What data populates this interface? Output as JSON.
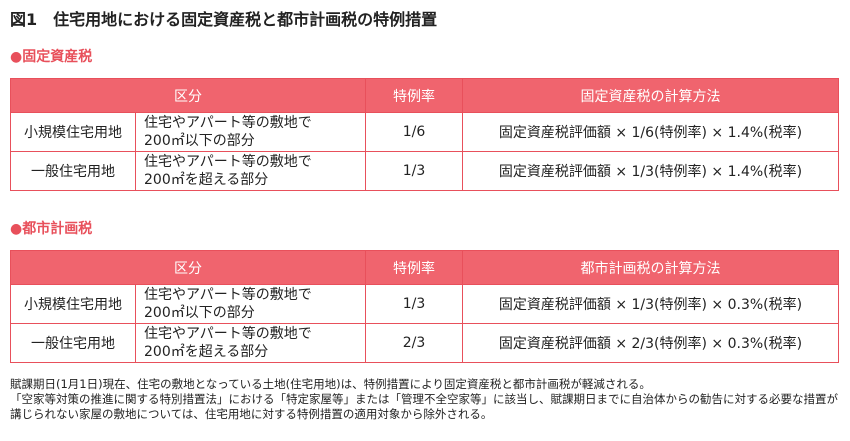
{
  "title": "図1　住宅用地における固定資産税と都市計画税の特例措置",
  "sections": [
    {
      "heading": "●固定資産税",
      "table": {
        "header": [
          "区分",
          "特例率",
          "固定資産税の計算方法"
        ],
        "rows": [
          {
            "type": "小規模住宅用地",
            "desc": [
              "住宅やアパート等の敷地で",
              "200㎡以下の部分"
            ],
            "rate": "1/6",
            "calc": "固定資産税評価額 × 1/6(特例率) × 1.4%(税率)"
          },
          {
            "type": "一般住宅用地",
            "desc": [
              "住宅やアパート等の敷地で",
              "200㎡を超える部分"
            ],
            "rate": "1/3",
            "calc": "固定資産税評価額 × 1/3(特例率) × 1.4%(税率)"
          }
        ]
      }
    },
    {
      "heading": "●都市計画税",
      "table": {
        "header": [
          "区分",
          "特例率",
          "都市計画税の計算方法"
        ],
        "rows": [
          {
            "type": "小規模住宅用地",
            "desc": [
              "住宅やアパート等の敷地で",
              "200㎡以下の部分"
            ],
            "rate": "1/3",
            "calc": "固定資産税評価額 × 1/3(特例率) × 0.3%(税率)"
          },
          {
            "type": "一般住宅用地",
            "desc": [
              "住宅やアパート等の敷地で",
              "200㎡を超える部分"
            ],
            "rate": "2/3",
            "calc": "固定資産税評価額 × 2/3(特例率) × 0.3%(税率)"
          }
        ]
      }
    }
  ],
  "notes": [
    "賦課期日(1月1日)現在、住宅の敷地となっている土地(住宅用地)は、特例措置により固定資産税と都市計画税が軽減される。",
    "「空家等対策の推進に関する特別措置法」における「特定家屋等」または「管理不全空家等」に該当し、賦課期日までに自治体からの勧告に対する必要な措置が講じられない家屋の敷地については、住宅用地に対する特例措置の適用対象から除外される。"
  ]
}
